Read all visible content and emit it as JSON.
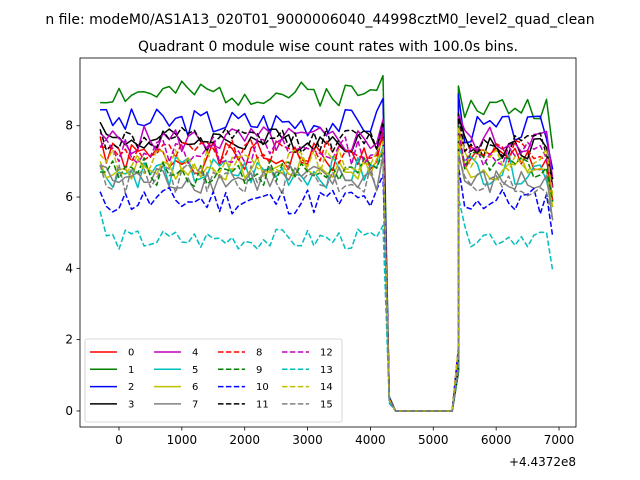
{
  "figure": {
    "suptitle": "n file: modeM0/AS1A13_020T01_9000006040_44998cztM0_level2_quad_clean",
    "x_offset_label": "+4.4372e8"
  },
  "chart_data": {
    "type": "line",
    "title": "Quadrant 0 module wise count rates with 100.0s bins.",
    "xlabel": "",
    "ylabel": "",
    "xlim": [
      -620,
      7270
    ],
    "ylim": [
      -0.45,
      9.9
    ],
    "xticks": [
      0,
      1000,
      2000,
      3000,
      4000,
      5000,
      6000,
      7000
    ],
    "yticks": [
      0,
      2,
      4,
      6,
      8
    ],
    "x_offset": 443720000,
    "grid": false,
    "legend_position": "lower-left",
    "legend_columns": 4,
    "x_segments": [
      {
        "start": -300,
        "end": 4200,
        "step": 100
      },
      {
        "start": 4300,
        "end": 4400,
        "step": 100
      },
      {
        "start": 4400,
        "end": 5300,
        "step": 900
      },
      {
        "start": 5400,
        "end": 6900,
        "step": 100
      }
    ],
    "gap_profile": [
      0.15,
      0,
      0,
      0.2
    ],
    "series": [
      {
        "name": "0",
        "color": "#ff0000",
        "dash": "solid",
        "seg1_mean": 7.1,
        "seg2_mean": 7.05,
        "seg1_start": 7.7,
        "amp": 0.45,
        "seed": 0
      },
      {
        "name": "1",
        "color": "#008000",
        "dash": "solid",
        "seg1_mean": 8.9,
        "seg2_mean": 8.5,
        "seg1_start": 8.65,
        "amp": 0.35,
        "seed": 1
      },
      {
        "name": "2",
        "color": "#0000ff",
        "dash": "solid",
        "seg1_mean": 8.1,
        "seg2_mean": 7.9,
        "seg1_start": 8.45,
        "amp": 0.4,
        "seed": 2
      },
      {
        "name": "3",
        "color": "#000000",
        "dash": "solid",
        "seg1_mean": 7.6,
        "seg2_mean": 7.4,
        "seg1_start": 8.1,
        "amp": 0.35,
        "seed": 3
      },
      {
        "name": "4",
        "color": "#bf00bf",
        "dash": "solid",
        "seg1_mean": 7.6,
        "seg2_mean": 7.6,
        "seg1_start": 7.8,
        "amp": 0.4,
        "seed": 4
      },
      {
        "name": "5",
        "color": "#00bfbf",
        "dash": "solid",
        "seg1_mean": 6.7,
        "seg2_mean": 6.8,
        "seg1_start": 6.9,
        "amp": 0.45,
        "seed": 5
      },
      {
        "name": "6",
        "color": "#bfbf00",
        "dash": "solid",
        "seg1_mean": 6.8,
        "seg2_mean": 6.8,
        "seg1_start": 7.0,
        "amp": 0.35,
        "seed": 6
      },
      {
        "name": "7",
        "color": "#808080",
        "dash": "solid",
        "seg1_mean": 6.5,
        "seg2_mean": 6.4,
        "seg1_start": 6.9,
        "amp": 0.4,
        "seed": 7
      },
      {
        "name": "8",
        "color": "#ff0000",
        "dash": "dashed",
        "seg1_mean": 7.25,
        "seg2_mean": 7.3,
        "seg1_start": 7.4,
        "amp": 0.35,
        "seed": 8
      },
      {
        "name": "9",
        "color": "#008000",
        "dash": "dashed",
        "seg1_mean": 6.7,
        "seg2_mean": 6.9,
        "seg1_start": 6.7,
        "amp": 0.4,
        "seed": 9
      },
      {
        "name": "10",
        "color": "#0000ff",
        "dash": "dashed",
        "seg1_mean": 5.9,
        "seg2_mean": 5.9,
        "seg1_start": 6.15,
        "amp": 0.4,
        "seed": 10
      },
      {
        "name": "11",
        "color": "#000000",
        "dash": "dashed",
        "seg1_mean": 7.6,
        "seg2_mean": 7.5,
        "seg1_start": 7.9,
        "amp": 0.35,
        "seed": 11
      },
      {
        "name": "12",
        "color": "#bf00bf",
        "dash": "dashed",
        "seg1_mean": 7.3,
        "seg2_mean": 7.2,
        "seg1_start": 7.4,
        "amp": 0.4,
        "seed": 12
      },
      {
        "name": "13",
        "color": "#00bfbf",
        "dash": "dashed",
        "seg1_mean": 4.8,
        "seg2_mean": 4.9,
        "seg1_start": 5.6,
        "amp": 0.3,
        "seed": 13
      },
      {
        "name": "14",
        "color": "#bfbf00",
        "dash": "dashed",
        "seg1_mean": 7.0,
        "seg2_mean": 7.0,
        "seg1_start": 7.2,
        "amp": 0.35,
        "seed": 14
      },
      {
        "name": "15",
        "color": "#808080",
        "dash": "dashed",
        "seg1_mean": 6.5,
        "seg2_mean": 6.3,
        "seg1_start": 6.9,
        "amp": 0.45,
        "seed": 15
      }
    ]
  }
}
